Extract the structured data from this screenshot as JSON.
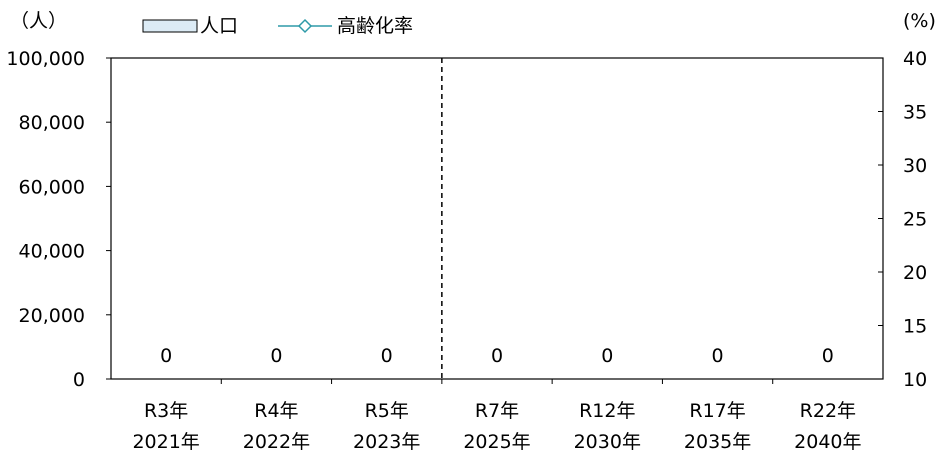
{
  "chart_data": {
    "type": "bar",
    "y_unit_left": "（人）",
    "y_unit_right": "(%)",
    "categories": [
      [
        "R3年",
        "2021年"
      ],
      [
        "R4年",
        "2022年"
      ],
      [
        "R5年",
        "2023年"
      ],
      [
        "R7年",
        "2025年"
      ],
      [
        "R12年",
        "2030年"
      ],
      [
        "R17年",
        "2035年"
      ],
      [
        "R22年",
        "2040年"
      ]
    ],
    "series": [
      {
        "name": "人口",
        "kind": "bar",
        "axis": "left",
        "values": [
          0,
          0,
          0,
          0,
          0,
          0,
          0
        ],
        "fill": "#DCEBF5",
        "stroke": "#000000"
      },
      {
        "name": "高齢化率",
        "kind": "line",
        "axis": "right",
        "marker": "diamond",
        "values": [
          null,
          null,
          null,
          null,
          null,
          null,
          null
        ],
        "color": "#2E9AA8"
      }
    ],
    "data_labels": [
      "0",
      "0",
      "0",
      "0",
      "0",
      "0",
      "0"
    ],
    "y_left": {
      "min": 0,
      "max": 100000,
      "ticks": [
        0,
        20000,
        40000,
        60000,
        80000,
        100000
      ],
      "tick_labels": [
        "0",
        "20,000",
        "40,000",
        "60,000",
        "80,000",
        "100,000"
      ]
    },
    "y_right": {
      "min": 10,
      "max": 40,
      "ticks": [
        10,
        15,
        20,
        25,
        30,
        35,
        40
      ],
      "tick_labels": [
        "10",
        "15",
        "20",
        "25",
        "30",
        "35",
        "40"
      ]
    },
    "divider_after_category": 2,
    "legend_position": "top-left"
  }
}
